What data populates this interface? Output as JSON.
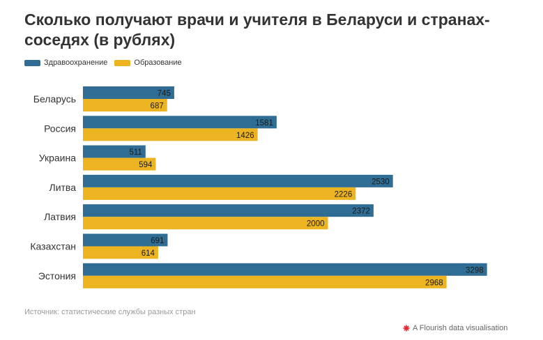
{
  "title": "Сколько получают врачи и учителя в Беларуси и странах-соседях (в рублях)",
  "legend": {
    "items": [
      {
        "label": "Здравоохранение",
        "color": "#2f6d94"
      },
      {
        "label": "Образование",
        "color": "#ecb420"
      }
    ]
  },
  "source": "Источник: статистические службы разных стран",
  "footer": {
    "credit": "A Flourish data visualisation",
    "icon": "flourish-logo-icon",
    "icon_color": "#e8242c"
  },
  "chart_data": {
    "type": "bar",
    "orientation": "horizontal",
    "categories": [
      "Беларусь",
      "Россия",
      "Украина",
      "Литва",
      "Латвия",
      "Казахстан",
      "Эстония"
    ],
    "series": [
      {
        "name": "Здравоохранение",
        "color": "#2f6d94",
        "values": [
          745,
          1581,
          511,
          2530,
          2372,
          691,
          3298
        ]
      },
      {
        "name": "Образование",
        "color": "#ecb420",
        "values": [
          687,
          1426,
          594,
          2226,
          2000,
          614,
          2968
        ]
      }
    ],
    "xlim": [
      0,
      3300
    ],
    "grid": false,
    "legend_position": "top-left",
    "data_labels": true
  }
}
